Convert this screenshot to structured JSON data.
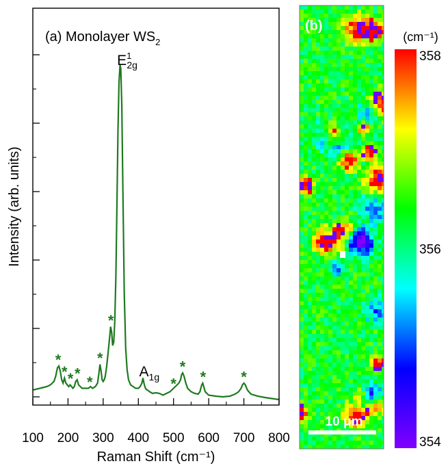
{
  "chart_data": [
    {
      "type": "line",
      "panel_label": "(a)",
      "title_main": "Monolayer WS",
      "title_sub": "2",
      "xlabel": "Raman Shift (cm⁻¹)",
      "ylabel": "Intensity (arb. units)",
      "xlim": [
        100,
        800
      ],
      "ylim": [
        0,
        100
      ],
      "xticks": [
        "100",
        "200",
        "300",
        "400",
        "500",
        "600",
        "700",
        "800"
      ],
      "y_tick_labels_shown": false,
      "y_ticks": [
        0,
        20,
        40,
        60,
        80,
        100
      ],
      "line_color": "#1e7a1e",
      "series": [
        {
          "x": [
            100,
            120,
            140,
            150,
            160,
            165,
            170,
            174,
            178,
            182,
            186,
            190,
            194,
            198,
            202,
            206,
            210,
            214,
            218,
            222,
            226,
            230,
            235,
            240,
            250,
            258,
            264,
            270,
            278,
            284,
            288,
            291,
            294,
            297,
            300,
            303,
            306,
            310,
            314,
            318,
            321,
            324,
            327,
            330,
            333,
            336,
            339,
            342,
            345,
            348,
            350,
            353,
            356,
            360,
            364,
            368,
            372,
            378,
            385,
            392,
            400,
            405,
            410,
            413,
            416,
            419,
            422,
            426,
            432,
            440,
            450,
            460,
            470,
            480,
            490,
            495,
            500,
            505,
            510,
            515,
            520,
            523,
            526,
            530,
            535,
            540,
            550,
            560,
            570,
            575,
            580,
            583,
            586,
            590,
            600,
            620,
            640,
            660,
            675,
            685,
            692,
            696,
            700,
            704,
            710,
            720,
            740,
            760,
            780,
            800
          ],
          "y": [
            2.0,
            2.5,
            3.0,
            3.5,
            4.5,
            6.0,
            8.5,
            9.0,
            7.5,
            5.0,
            4.0,
            5.5,
            4.0,
            3.5,
            3.0,
            3.5,
            3.0,
            2.5,
            3.0,
            4.5,
            5.0,
            3.5,
            3.0,
            2.5,
            2.5,
            2.5,
            3.0,
            2.5,
            3.0,
            4.0,
            7.0,
            9.5,
            7.5,
            5.0,
            4.5,
            5.0,
            6.0,
            9.0,
            13.0,
            17.0,
            20.5,
            19.0,
            15.0,
            16.0,
            22.0,
            35.0,
            55.0,
            78.0,
            92.0,
            97.0,
            96.0,
            85.0,
            60.0,
            30.0,
            14.0,
            8.0,
            5.0,
            3.5,
            3.0,
            2.5,
            2.5,
            3.0,
            4.0,
            5.5,
            4.0,
            2.8,
            2.2,
            2.0,
            1.5,
            1.0,
            1.2,
            1.0,
            0.5,
            1.0,
            1.5,
            2.0,
            2.5,
            3.0,
            3.5,
            4.0,
            5.0,
            6.5,
            7.0,
            6.0,
            4.0,
            2.5,
            1.5,
            1.0,
            0.8,
            1.5,
            3.5,
            4.0,
            3.0,
            1.5,
            0.5,
            0.2,
            0.0,
            0.2,
            0.8,
            1.5,
            2.5,
            3.5,
            4.0,
            3.5,
            2.0,
            0.8,
            0.2,
            -0.2,
            -0.5,
            -0.8
          ]
        }
      ],
      "annotations": [
        {
          "text": "E",
          "sup": "1",
          "sub": "2g",
          "x": 355,
          "y": 97
        },
        {
          "text": "A",
          "sub": "1g",
          "x": 418,
          "y": 6
        },
        {
          "text": "*",
          "x": 172,
          "y": 9.5
        },
        {
          "text": "*",
          "x": 190,
          "y": 6
        },
        {
          "text": "*",
          "x": 207,
          "y": 4
        },
        {
          "text": "*",
          "x": 227,
          "y": 5.5
        },
        {
          "text": "*",
          "x": 262,
          "y": 3
        },
        {
          "text": "*",
          "x": 291,
          "y": 10
        },
        {
          "text": "*",
          "x": 322,
          "y": 21
        },
        {
          "text": "*",
          "x": 500,
          "y": 2.5
        },
        {
          "text": "*",
          "x": 526,
          "y": 7.5
        },
        {
          "text": "*",
          "x": 584,
          "y": 4.5
        },
        {
          "text": "*",
          "x": 700,
          "y": 4.5
        }
      ]
    },
    {
      "type": "heatmap",
      "panel_label": "(b)",
      "colorbar_unit": "(cm⁻¹)",
      "colorbar_min": 354,
      "colorbar_max": 358,
      "colorbar_ticks": [
        "358",
        "356",
        "354"
      ],
      "scalebar_label": "10 μm",
      "colormap": [
        "#8000ff",
        "#0000ff",
        "#00ffff",
        "#00ff00",
        "#ffff00",
        "#ff0000"
      ]
    }
  ]
}
